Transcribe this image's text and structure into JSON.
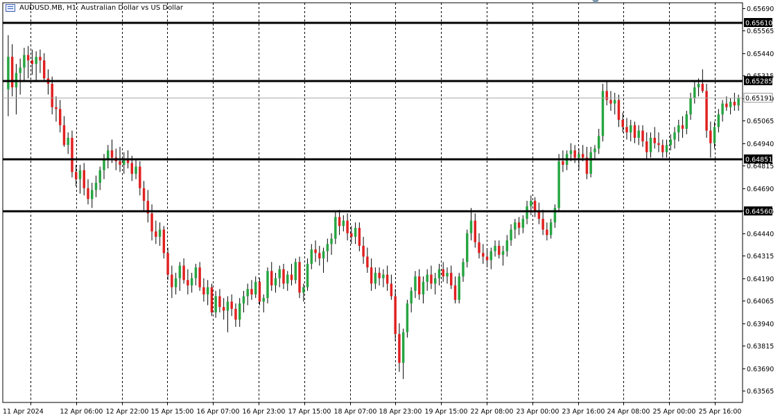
{
  "header": {
    "symbol": "AUDUSD.MB",
    "timeframe": "H1",
    "description": "Australian Dollar vs US Dollar",
    "title": "AUDUSD.MB, H1:  Australian Dollar vs US Dollar"
  },
  "colors": {
    "bull": "#26a541",
    "bear": "#e02020",
    "wick": "#000000",
    "background": "#ffffff",
    "grid": "#000000",
    "level_line": "#000000",
    "current_price_line": "#a8a8a8",
    "label_bg": "#000000",
    "label_text": "#ffffff"
  },
  "chart_data": {
    "type": "candlestick",
    "symbol": "AUDUSD.MB",
    "timeframe": "H1",
    "ylim": [
      0.635,
      0.6572
    ],
    "y_ticks": [
      "0.65690",
      "0.65565",
      "0.65440",
      "0.65315",
      "0.65190",
      "0.65065",
      "0.64940",
      "0.64815",
      "0.64690",
      "0.64565",
      "0.64440",
      "0.64315",
      "0.64190",
      "0.64065",
      "0.63940",
      "0.63815",
      "0.63690",
      "0.63565"
    ],
    "x_ticks": [
      "11 Apr 2024",
      "12 Apr 06:00",
      "12 Apr 22:00",
      "15 Apr 15:00",
      "16 Apr 07:00",
      "16 Apr 23:00",
      "17 Apr 15:00",
      "18 Apr 07:00",
      "18 Apr 23:00",
      "19 Apr 15:00",
      "22 Apr 08:00",
      "23 Apr 00:00",
      "23 Apr 16:00",
      "24 Apr 08:00",
      "25 Apr 00:00",
      "25 Apr 16:00"
    ],
    "grid": "vertical dashed",
    "horizontal_levels": [
      "0.65610",
      "0.65285",
      "0.64851",
      "0.64560"
    ],
    "current_price": "0.65191",
    "candles": [
      [
        0.6524,
        0.6554,
        0.6509,
        0.6542
      ],
      [
        0.6542,
        0.6549,
        0.652,
        0.6525
      ],
      [
        0.6525,
        0.6538,
        0.651,
        0.6533
      ],
      [
        0.6533,
        0.6541,
        0.6521,
        0.6536
      ],
      [
        0.6536,
        0.6547,
        0.6528,
        0.6543
      ],
      [
        0.6543,
        0.6548,
        0.653,
        0.654
      ],
      [
        0.654,
        0.6546,
        0.6532,
        0.6538
      ],
      [
        0.6538,
        0.6545,
        0.6529,
        0.6542
      ],
      [
        0.6542,
        0.6546,
        0.6533,
        0.654
      ],
      [
        0.654,
        0.6544,
        0.6528,
        0.653
      ],
      [
        0.653,
        0.6535,
        0.6521,
        0.6527
      ],
      [
        0.6527,
        0.6531,
        0.651,
        0.6514
      ],
      [
        0.6514,
        0.652,
        0.6506,
        0.6513
      ],
      [
        0.6513,
        0.6518,
        0.65,
        0.6504
      ],
      [
        0.6504,
        0.6509,
        0.6492,
        0.6493
      ],
      [
        0.6493,
        0.65,
        0.6488,
        0.6497
      ],
      [
        0.6497,
        0.6501,
        0.6475,
        0.6478
      ],
      [
        0.6478,
        0.6482,
        0.647,
        0.6474
      ],
      [
        0.6474,
        0.6482,
        0.6466,
        0.6479
      ],
      [
        0.6479,
        0.6483,
        0.6465,
        0.6469
      ],
      [
        0.6469,
        0.6474,
        0.646,
        0.6463
      ],
      [
        0.6463,
        0.6472,
        0.6458,
        0.6468
      ],
      [
        0.6468,
        0.6476,
        0.6464,
        0.6472
      ],
      [
        0.6472,
        0.6481,
        0.6468,
        0.6479
      ],
      [
        0.6479,
        0.6488,
        0.6474,
        0.6485
      ],
      [
        0.6485,
        0.6493,
        0.648,
        0.649
      ],
      [
        0.649,
        0.6496,
        0.6483,
        0.6486
      ],
      [
        0.6486,
        0.6491,
        0.6479,
        0.6484
      ],
      [
        0.6484,
        0.6492,
        0.6478,
        0.6482
      ],
      [
        0.6482,
        0.6489,
        0.6477,
        0.6485
      ],
      [
        0.6485,
        0.649,
        0.648,
        0.6483
      ],
      [
        0.6483,
        0.6487,
        0.6473,
        0.6477
      ],
      [
        0.6477,
        0.6485,
        0.6474,
        0.6481
      ],
      [
        0.6481,
        0.6484,
        0.6465,
        0.6469
      ],
      [
        0.6469,
        0.6473,
        0.6456,
        0.6462
      ],
      [
        0.6462,
        0.6468,
        0.645,
        0.6455
      ],
      [
        0.6455,
        0.646,
        0.644,
        0.6445
      ],
      [
        0.6445,
        0.6451,
        0.6438,
        0.6442
      ],
      [
        0.6442,
        0.645,
        0.6437,
        0.6446
      ],
      [
        0.6446,
        0.6448,
        0.643,
        0.6433
      ],
      [
        0.6433,
        0.6436,
        0.6418,
        0.6421
      ],
      [
        0.6421,
        0.6426,
        0.6408,
        0.6414
      ],
      [
        0.6414,
        0.6422,
        0.641,
        0.6419
      ],
      [
        0.6419,
        0.6428,
        0.6412,
        0.6426
      ],
      [
        0.6426,
        0.643,
        0.6416,
        0.6418
      ],
      [
        0.6418,
        0.6424,
        0.641,
        0.6415
      ],
      [
        0.6415,
        0.6422,
        0.6411,
        0.6419
      ],
      [
        0.6419,
        0.6427,
        0.6415,
        0.6425
      ],
      [
        0.6425,
        0.6428,
        0.6412,
        0.6414
      ],
      [
        0.6414,
        0.6419,
        0.6406,
        0.641
      ],
      [
        0.641,
        0.6418,
        0.6404,
        0.6414
      ],
      [
        0.6414,
        0.6416,
        0.6398,
        0.64
      ],
      [
        0.64,
        0.6412,
        0.6397,
        0.6409
      ],
      [
        0.6409,
        0.6413,
        0.64,
        0.6403
      ],
      [
        0.6403,
        0.6408,
        0.6396,
        0.6401
      ],
      [
        0.6401,
        0.6409,
        0.6389,
        0.6406
      ],
      [
        0.6406,
        0.641,
        0.6398,
        0.6402
      ],
      [
        0.6402,
        0.6405,
        0.6392,
        0.6396
      ],
      [
        0.6396,
        0.6408,
        0.6392,
        0.6405
      ],
      [
        0.6405,
        0.6412,
        0.64,
        0.6409
      ],
      [
        0.6409,
        0.6416,
        0.6404,
        0.6413
      ],
      [
        0.6413,
        0.6418,
        0.6407,
        0.641
      ],
      [
        0.641,
        0.642,
        0.6408,
        0.6417
      ],
      [
        0.6417,
        0.6419,
        0.6404,
        0.6406
      ],
      [
        0.6406,
        0.641,
        0.64,
        0.6408
      ],
      [
        0.6408,
        0.6425,
        0.6405,
        0.6423
      ],
      [
        0.6423,
        0.6428,
        0.6412,
        0.6415
      ],
      [
        0.6415,
        0.6422,
        0.6411,
        0.6419
      ],
      [
        0.6419,
        0.6426,
        0.6414,
        0.6424
      ],
      [
        0.6424,
        0.6427,
        0.6413,
        0.6416
      ],
      [
        0.6416,
        0.6423,
        0.6412,
        0.6421
      ],
      [
        0.6421,
        0.6427,
        0.6415,
        0.6418
      ],
      [
        0.6418,
        0.643,
        0.6416,
        0.6428
      ],
      [
        0.6428,
        0.6431,
        0.6408,
        0.6411
      ],
      [
        0.6411,
        0.6416,
        0.6406,
        0.6414
      ],
      [
        0.6414,
        0.643,
        0.6412,
        0.6427
      ],
      [
        0.6427,
        0.6438,
        0.6424,
        0.6435
      ],
      [
        0.6435,
        0.644,
        0.6428,
        0.6433
      ],
      [
        0.6433,
        0.6437,
        0.6426,
        0.643
      ],
      [
        0.643,
        0.6436,
        0.6422,
        0.6434
      ],
      [
        0.6434,
        0.6441,
        0.6428,
        0.6438
      ],
      [
        0.6438,
        0.6444,
        0.6432,
        0.6441
      ],
      [
        0.6441,
        0.6456,
        0.6438,
        0.6453
      ],
      [
        0.6453,
        0.6457,
        0.6443,
        0.6448
      ],
      [
        0.6448,
        0.6454,
        0.6445,
        0.6451
      ],
      [
        0.6451,
        0.6455,
        0.644,
        0.6444
      ],
      [
        0.6444,
        0.6448,
        0.6438,
        0.6442
      ],
      [
        0.6442,
        0.645,
        0.6438,
        0.6447
      ],
      [
        0.6447,
        0.645,
        0.6434,
        0.6437
      ],
      [
        0.6437,
        0.6442,
        0.6427,
        0.6431
      ],
      [
        0.6431,
        0.6436,
        0.6422,
        0.6425
      ],
      [
        0.6425,
        0.643,
        0.6412,
        0.6416
      ],
      [
        0.6416,
        0.6425,
        0.6413,
        0.6422
      ],
      [
        0.6422,
        0.6425,
        0.6415,
        0.6419
      ],
      [
        0.6419,
        0.6424,
        0.6414,
        0.6421
      ],
      [
        0.6421,
        0.6426,
        0.6412,
        0.6416
      ],
      [
        0.6416,
        0.6421,
        0.6407,
        0.6409
      ],
      [
        0.6409,
        0.6413,
        0.6384,
        0.6388
      ],
      [
        0.6388,
        0.6394,
        0.6367,
        0.6372
      ],
      [
        0.6372,
        0.6391,
        0.6363,
        0.6389
      ],
      [
        0.6389,
        0.6407,
        0.6386,
        0.6405
      ],
      [
        0.6405,
        0.6414,
        0.64,
        0.6412
      ],
      [
        0.6412,
        0.6423,
        0.6408,
        0.642
      ],
      [
        0.642,
        0.6424,
        0.6407,
        0.641
      ],
      [
        0.641,
        0.642,
        0.6405,
        0.6417
      ],
      [
        0.6417,
        0.6424,
        0.6412,
        0.6421
      ],
      [
        0.6421,
        0.6426,
        0.6413,
        0.6416
      ],
      [
        0.6416,
        0.6422,
        0.641,
        0.6419
      ],
      [
        0.6419,
        0.6427,
        0.6415,
        0.6424
      ],
      [
        0.6424,
        0.6428,
        0.6417,
        0.642
      ],
      [
        0.642,
        0.6425,
        0.6416,
        0.6422
      ],
      [
        0.6422,
        0.6426,
        0.6413,
        0.6415
      ],
      [
        0.6415,
        0.642,
        0.6405,
        0.6407
      ],
      [
        0.6407,
        0.6422,
        0.6405,
        0.642
      ],
      [
        0.642,
        0.643,
        0.6417,
        0.6428
      ],
      [
        0.6428,
        0.6446,
        0.6425,
        0.6444
      ],
      [
        0.6444,
        0.6458,
        0.644,
        0.6451
      ],
      [
        0.6451,
        0.6455,
        0.6436,
        0.6439
      ],
      [
        0.6439,
        0.6444,
        0.643,
        0.6433
      ],
      [
        0.6433,
        0.6438,
        0.6427,
        0.6431
      ],
      [
        0.6431,
        0.6435,
        0.6425,
        0.6429
      ],
      [
        0.6429,
        0.6436,
        0.6424,
        0.6434
      ],
      [
        0.6434,
        0.644,
        0.6431,
        0.6437
      ],
      [
        0.6437,
        0.644,
        0.643,
        0.6432
      ],
      [
        0.6432,
        0.6437,
        0.6426,
        0.6434
      ],
      [
        0.6434,
        0.6443,
        0.6431,
        0.644
      ],
      [
        0.644,
        0.6449,
        0.6437,
        0.6446
      ],
      [
        0.6446,
        0.6452,
        0.6441,
        0.645
      ],
      [
        0.645,
        0.6453,
        0.6443,
        0.6447
      ],
      [
        0.6447,
        0.6454,
        0.6444,
        0.6452
      ],
      [
        0.6452,
        0.6462,
        0.6449,
        0.6459
      ],
      [
        0.6459,
        0.6465,
        0.6454,
        0.6462
      ],
      [
        0.6462,
        0.6464,
        0.6453,
        0.6456
      ],
      [
        0.6456,
        0.6461,
        0.6449,
        0.6452
      ],
      [
        0.6452,
        0.6457,
        0.6443,
        0.6446
      ],
      [
        0.6446,
        0.645,
        0.644,
        0.6443
      ],
      [
        0.6443,
        0.6452,
        0.6441,
        0.645
      ],
      [
        0.645,
        0.646,
        0.6447,
        0.6458
      ],
      [
        0.6458,
        0.6488,
        0.6456,
        0.6484
      ],
      [
        0.6484,
        0.649,
        0.6478,
        0.6482
      ],
      [
        0.6482,
        0.649,
        0.6479,
        0.6488
      ],
      [
        0.6488,
        0.6494,
        0.6484,
        0.649
      ],
      [
        0.649,
        0.6493,
        0.6483,
        0.6486
      ],
      [
        0.6486,
        0.6491,
        0.6479,
        0.6488
      ],
      [
        0.6488,
        0.6493,
        0.6484,
        0.6486
      ],
      [
        0.6486,
        0.6492,
        0.6474,
        0.6477
      ],
      [
        0.6477,
        0.6492,
        0.6475,
        0.6489
      ],
      [
        0.6489,
        0.6493,
        0.6485,
        0.6491
      ],
      [
        0.6491,
        0.6502,
        0.6488,
        0.6498
      ],
      [
        0.6498,
        0.6527,
        0.6495,
        0.6523
      ],
      [
        0.6523,
        0.6528,
        0.6515,
        0.6518
      ],
      [
        0.6518,
        0.6523,
        0.6512,
        0.6516
      ],
      [
        0.6516,
        0.6522,
        0.651,
        0.6518
      ],
      [
        0.6518,
        0.6521,
        0.6503,
        0.6507
      ],
      [
        0.6507,
        0.6511,
        0.65,
        0.6503
      ],
      [
        0.6503,
        0.6508,
        0.6496,
        0.65
      ],
      [
        0.65,
        0.6507,
        0.6495,
        0.6504
      ],
      [
        0.6504,
        0.6506,
        0.6494,
        0.6497
      ],
      [
        0.6497,
        0.6504,
        0.6493,
        0.6501
      ],
      [
        0.6501,
        0.6504,
        0.6492,
        0.6495
      ],
      [
        0.6495,
        0.65,
        0.6485,
        0.6489
      ],
      [
        0.6489,
        0.65,
        0.6486,
        0.6497
      ],
      [
        0.6497,
        0.6503,
        0.6491,
        0.6494
      ],
      [
        0.6494,
        0.65,
        0.6489,
        0.6493
      ],
      [
        0.6493,
        0.6496,
        0.6486,
        0.6489
      ],
      [
        0.6489,
        0.6496,
        0.6486,
        0.6493
      ],
      [
        0.6493,
        0.6499,
        0.649,
        0.6496
      ],
      [
        0.6496,
        0.6503,
        0.6491,
        0.65
      ],
      [
        0.65,
        0.6507,
        0.6495,
        0.6504
      ],
      [
        0.6504,
        0.6509,
        0.6497,
        0.6502
      ],
      [
        0.6502,
        0.6512,
        0.6499,
        0.651
      ],
      [
        0.651,
        0.6522,
        0.6507,
        0.6519
      ],
      [
        0.6519,
        0.6528,
        0.6516,
        0.6525
      ],
      [
        0.6525,
        0.653,
        0.652,
        0.6527
      ],
      [
        0.6527,
        0.6535,
        0.6522,
        0.6523
      ],
      [
        0.6523,
        0.6527,
        0.6497,
        0.6501
      ],
      [
        0.6501,
        0.6506,
        0.6486,
        0.6494
      ],
      [
        0.6494,
        0.6506,
        0.6491,
        0.6503
      ],
      [
        0.6503,
        0.6513,
        0.65,
        0.651
      ],
      [
        0.651,
        0.6518,
        0.6506,
        0.6516
      ],
      [
        0.6516,
        0.652,
        0.6512,
        0.6514
      ],
      [
        0.6514,
        0.6519,
        0.651,
        0.6517
      ],
      [
        0.6517,
        0.6522,
        0.6512,
        0.6515
      ],
      [
        0.6515,
        0.6521,
        0.6512,
        0.6519
      ]
    ]
  }
}
